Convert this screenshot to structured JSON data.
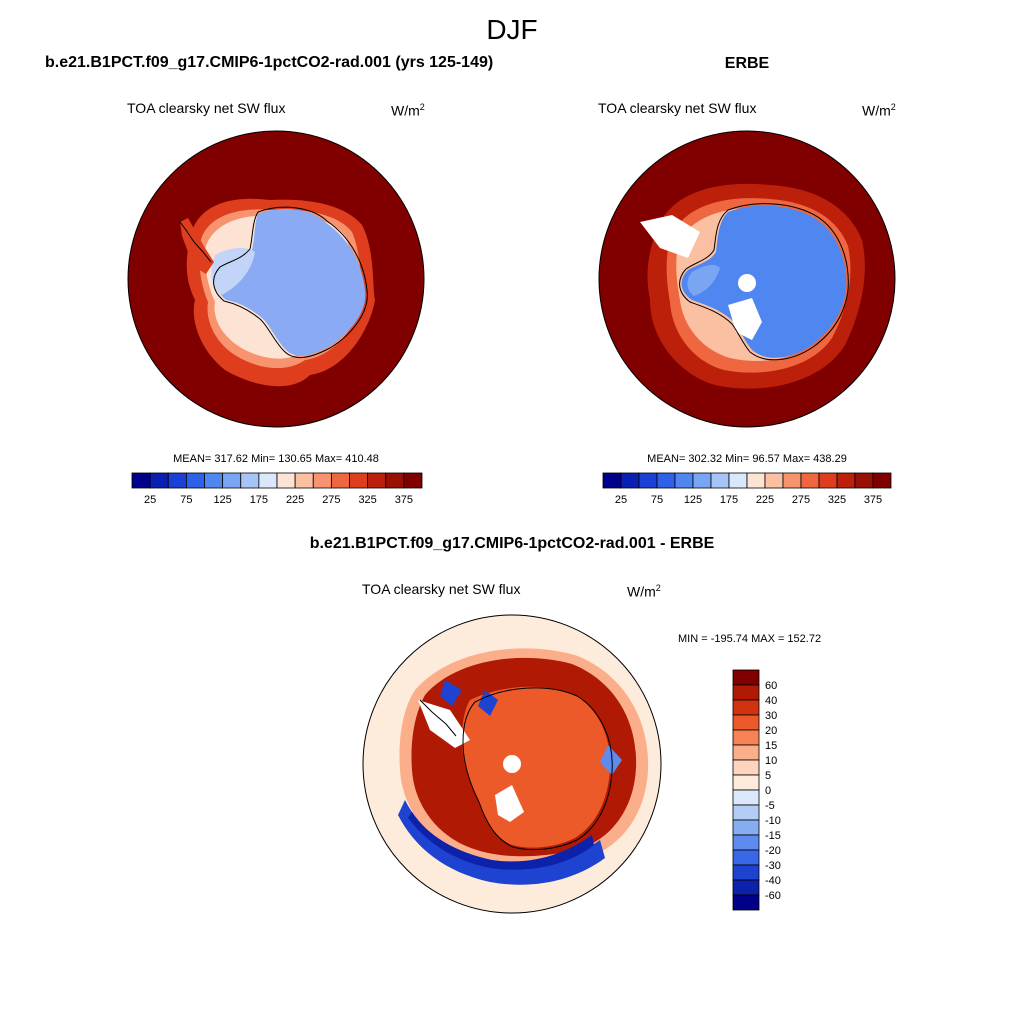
{
  "page_title": "DJF",
  "panels": [
    {
      "title": "b.e21.B1PCT.f09_g17.CMIP6-1pctCO2-rad.001 (yrs 125-149)",
      "variable": "TOA clearsky net SW flux",
      "units_base": "W/m",
      "units_exp": "2",
      "stats": "MEAN= 317.62  Min= 130.65  Max= 410.48"
    },
    {
      "title": "ERBE",
      "variable": "TOA clearsky net SW flux",
      "units_base": "W/m",
      "units_exp": "2",
      "stats": "MEAN= 302.32  Min=  96.57  Max= 438.29"
    },
    {
      "title": "b.e21.B1PCT.f09_g17.CMIP6-1pctCO2-rad.001 - ERBE",
      "variable": "TOA clearsky net SW flux",
      "units_base": "W/m",
      "units_exp": "2",
      "stats": "MIN = -195.74 MAX = 152.72"
    }
  ],
  "chart_data": [
    {
      "type": "heatmap",
      "projection": "south polar stereographic",
      "colorbar": {
        "orientation": "horizontal",
        "labels": [
          "25",
          "75",
          "125",
          "175",
          "225",
          "275",
          "325",
          "375"
        ],
        "levels": [
          25,
          50,
          75,
          100,
          125,
          150,
          175,
          200,
          225,
          250,
          275,
          300,
          325,
          350,
          375
        ],
        "colors": [
          "#00008c",
          "#0a1fb4",
          "#1c3fd6",
          "#2d62e8",
          "#4f86ef",
          "#7aa5f2",
          "#a7c4f6",
          "#dbe7fa",
          "#fde3d3",
          "#fbbfa2",
          "#f7946f",
          "#ee6740",
          "#de3e1d",
          "#bd200a",
          "#991004",
          "#800000"
        ]
      },
      "field_colors": {
        "ocean": "#800000",
        "antarctica": "#8aaaf3",
        "peninsula_region": "#c2d4f7"
      }
    },
    {
      "type": "heatmap",
      "projection": "south polar stereographic",
      "colorbar": {
        "orientation": "horizontal",
        "labels": [
          "25",
          "75",
          "125",
          "175",
          "225",
          "275",
          "325",
          "375"
        ],
        "levels": [
          25,
          50,
          75,
          100,
          125,
          150,
          175,
          200,
          225,
          250,
          275,
          300,
          325,
          350,
          375
        ],
        "colors": [
          "#00008c",
          "#0a1fb4",
          "#1c3fd6",
          "#2d62e8",
          "#4f86ef",
          "#7aa5f2",
          "#a7c4f6",
          "#dbe7fa",
          "#fde3d3",
          "#fbbfa2",
          "#f7946f",
          "#ee6740",
          "#de3e1d",
          "#bd200a",
          "#991004",
          "#800000"
        ]
      },
      "field_colors": {
        "ocean": "#800000",
        "antarctica": "#4f86ef",
        "missing": "#ffffff"
      }
    },
    {
      "type": "heatmap",
      "projection": "south polar stereographic",
      "colorbar": {
        "orientation": "vertical",
        "labels": [
          "60",
          "40",
          "30",
          "20",
          "15",
          "10",
          "5",
          "0",
          "-5",
          "-10",
          "-15",
          "-20",
          "-30",
          "-40",
          "-60"
        ],
        "colors": [
          "#800000",
          "#b01a05",
          "#d2330f",
          "#ec5a2a",
          "#f78255",
          "#fbae8a",
          "#fdd5bf",
          "#fdebdc",
          "#dbe8fb",
          "#b4cdf6",
          "#86acf1",
          "#5d8cee",
          "#3a67e6",
          "#1f43d1",
          "#0c22aa",
          "#000088"
        ]
      },
      "field_colors": {
        "interior": "#ec5a2a",
        "ring": "#b01a05",
        "blue_band": "#1f43d1",
        "outer": "#fdebdc"
      }
    }
  ]
}
